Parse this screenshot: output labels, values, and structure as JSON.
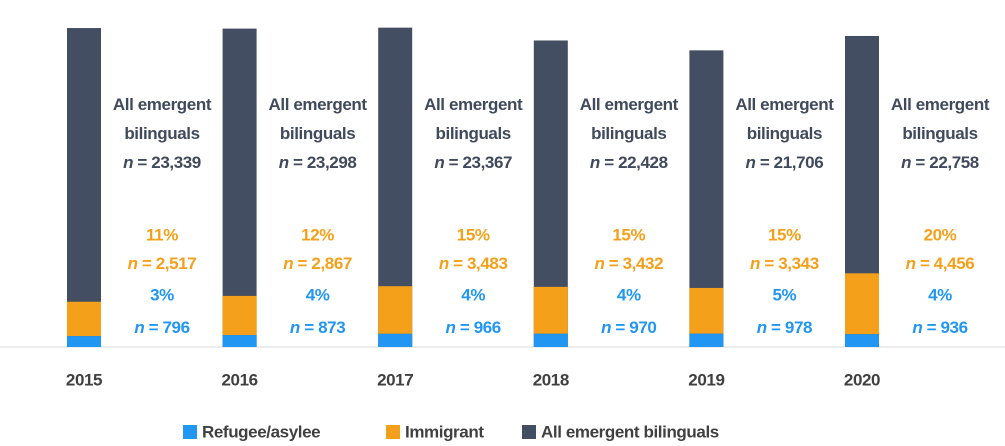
{
  "chart_data": {
    "type": "bar",
    "categories": [
      "2015",
      "2016",
      "2017",
      "2018",
      "2019",
      "2020"
    ],
    "ylim": [
      0,
      24000
    ],
    "series": [
      {
        "name": "Refugee/asylee",
        "color": "#2196f3",
        "values": [
          796,
          873,
          966,
          970,
          978,
          936
        ],
        "value_labels": [
          "n = 796",
          "n = 873",
          "n = 966",
          "n = 970",
          "n = 978",
          "n = 936"
        ],
        "percent_labels": [
          "3%",
          "4%",
          "4%",
          "4%",
          "5%",
          "4%"
        ]
      },
      {
        "name": "Immigrant",
        "color": "#f5a01a",
        "values": [
          2517,
          2867,
          3483,
          3432,
          3343,
          4456
        ],
        "value_labels": [
          "n = 2,517",
          "n = 2,867",
          "n = 3,483",
          "n = 3,432",
          "n = 3,343",
          "n = 4,456"
        ],
        "percent_labels": [
          "11%",
          "12%",
          "15%",
          "15%",
          "15%",
          "20%"
        ]
      },
      {
        "name": "All emergent bilinguals",
        "color": "#434e63",
        "values": [
          23339,
          23298,
          23367,
          22428,
          21706,
          22758
        ],
        "value_labels": [
          "n = 23,339",
          "n = 23,298",
          "n = 23,367",
          "n = 22,428",
          "n = 21,706",
          "n = 22,758"
        ]
      }
    ]
  }
}
